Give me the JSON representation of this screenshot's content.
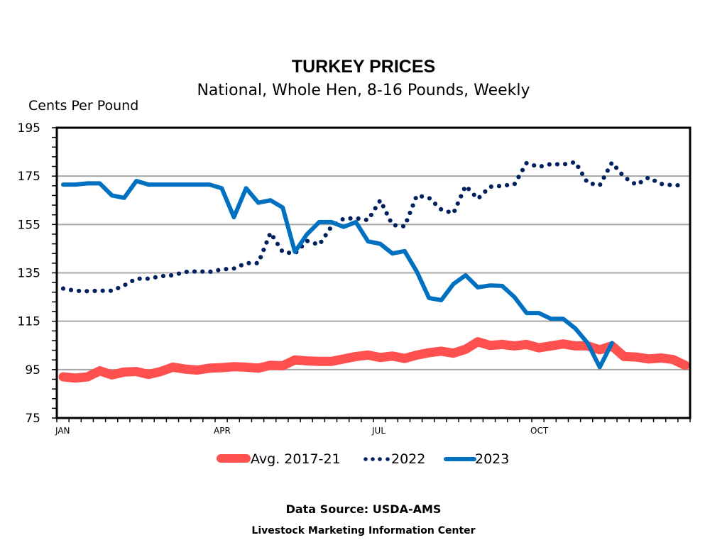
{
  "chart_data": {
    "type": "line",
    "title": "TURKEY PRICES",
    "subtitle": "National, Whole Hen, 8-16 Pounds, Weekly",
    "ylabel": "Cents Per Pound",
    "xlabel": "",
    "ylim": [
      75,
      195
    ],
    "yticks": [
      "75",
      "95",
      "115",
      "135",
      "155",
      "175",
      "195"
    ],
    "xticks": [
      "JAN",
      "APR",
      "JUL",
      "OCT"
    ],
    "xtick_weeks": [
      0,
      13,
      26,
      39
    ],
    "weeks": 52,
    "grid": "horizontal",
    "legend_position": "bottom",
    "series": [
      {
        "name": "Avg. 2017-21",
        "color": "#ff5050",
        "style": "thick-solid",
        "values": [
          92,
          91.5,
          92,
          94.5,
          92.8,
          94,
          94.2,
          93,
          94.2,
          96,
          95.2,
          94.8,
          95.6,
          95.8,
          96.2,
          96,
          95.6,
          96.8,
          96.6,
          99,
          98.6,
          98.4,
          98.4,
          99.4,
          100.4,
          101,
          100,
          100.6,
          99.6,
          101,
          102,
          102.6,
          101.8,
          103.4,
          106.5,
          105,
          105.4,
          104.8,
          105.4,
          104,
          104.8,
          105.6,
          104.8,
          104.8,
          103.2,
          104.8,
          100.4,
          100.2,
          99.4,
          99.8,
          99.2,
          96.8
        ]
      },
      {
        "name": "2022",
        "color": "#002060",
        "style": "dotted",
        "values": [
          128.5,
          127.6,
          127.4,
          127.6,
          127.6,
          129.8,
          132.6,
          132.6,
          133.6,
          134,
          135.4,
          135.6,
          135.4,
          136.4,
          136.8,
          139,
          139,
          151.6,
          143.6,
          143,
          148.2,
          146.6,
          154.2,
          157.4,
          157.6,
          156.8,
          165,
          154.8,
          154.2,
          167,
          166,
          161.2,
          159.6,
          171,
          165.6,
          170.6,
          171,
          171.6,
          180.4,
          178.8,
          180,
          179.8,
          180.8,
          172.2,
          171.2,
          180.6,
          174.6,
          171.4,
          174.4,
          171.8,
          171.2,
          171.2
        ]
      },
      {
        "name": "2023",
        "color": "#0070c0",
        "style": "solid",
        "values": [
          171.5,
          171.5,
          172,
          172,
          167,
          166,
          173,
          171.5,
          171.5,
          171.5,
          171.5,
          171.5,
          171.5,
          170,
          158,
          170,
          164,
          165,
          162,
          143.7,
          151,
          156,
          156,
          154,
          156,
          148,
          147,
          143,
          144,
          135.5,
          124.6,
          123.7,
          130.4,
          134,
          129,
          129.8,
          129.6,
          125,
          118.4,
          118.4,
          116,
          116,
          112,
          106,
          96,
          106
        ]
      }
    ]
  },
  "footer": {
    "source": "Data Source:  USDA-AMS",
    "organization": "Livestock Marketing Information Center"
  }
}
